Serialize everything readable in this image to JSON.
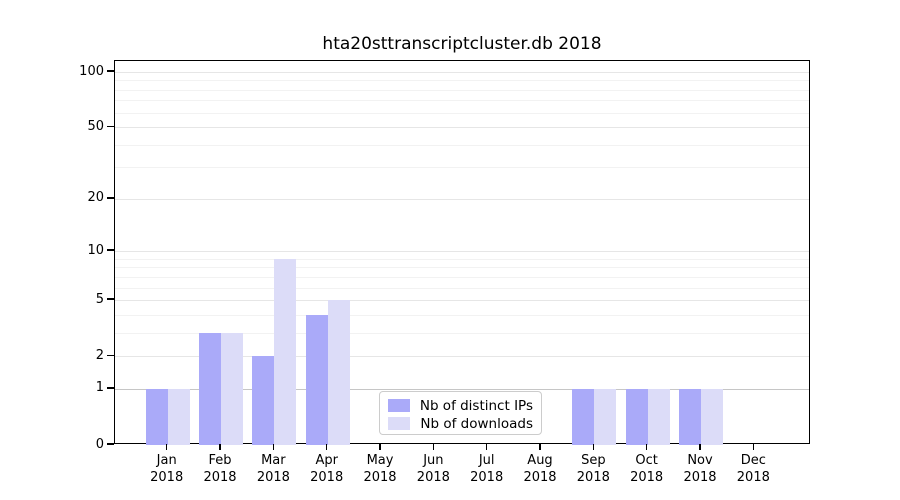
{
  "chart_data": {
    "type": "bar",
    "title": "hta20sttranscriptcluster.db 2018",
    "year_label": "2018",
    "categories": [
      "Jan",
      "Feb",
      "Mar",
      "Apr",
      "May",
      "Jun",
      "Jul",
      "Aug",
      "Sep",
      "Oct",
      "Nov",
      "Dec"
    ],
    "series": [
      {
        "name": "Nb of distinct IPs",
        "color": "#aaaaf9",
        "values": [
          1,
          3,
          2,
          4,
          0,
          0,
          0,
          0,
          1,
          1,
          1,
          0
        ]
      },
      {
        "name": "Nb of downloads",
        "color": "#dcdcf8",
        "values": [
          1,
          3,
          9,
          5,
          0,
          0,
          0,
          0,
          1,
          1,
          1,
          0
        ]
      }
    ],
    "yscale": "log1p",
    "yticks": [
      0,
      1,
      2,
      5,
      10,
      20,
      50,
      100
    ],
    "minor_gridline_values": [
      3,
      4,
      6,
      7,
      8,
      9,
      30,
      40,
      60,
      70,
      80,
      90
    ],
    "ylim": [
      0,
      110
    ],
    "xlabel": "",
    "ylabel": "",
    "grid": true,
    "legend_position": "inside-bottom-center"
  }
}
